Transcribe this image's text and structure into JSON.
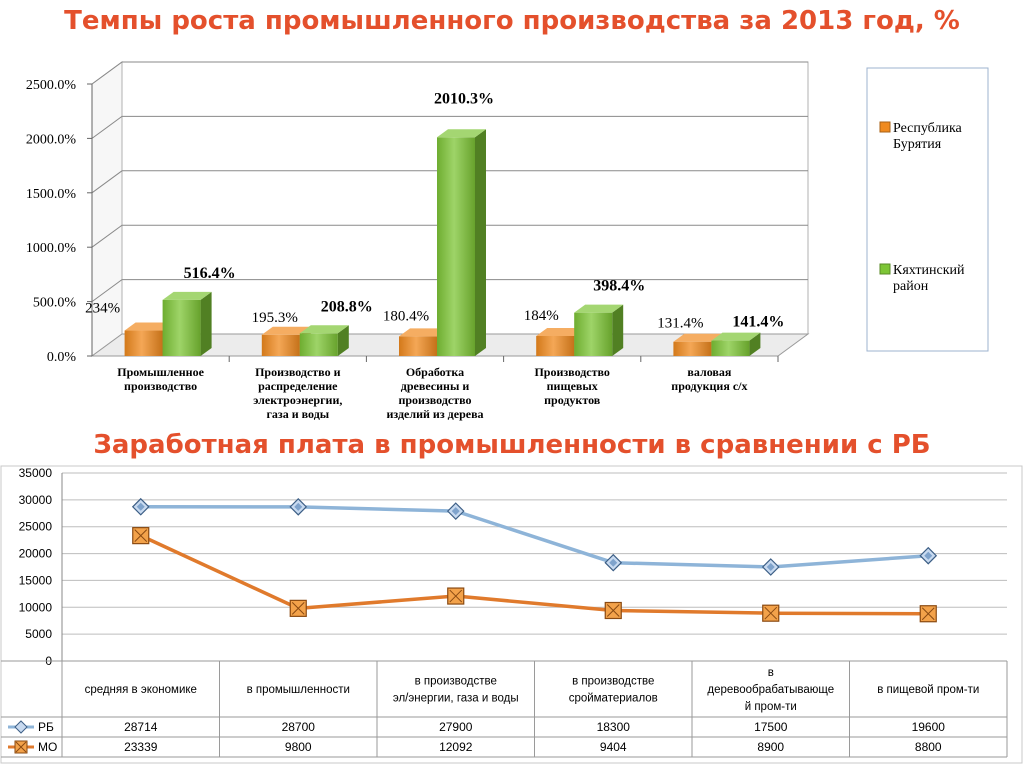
{
  "page": {
    "title1": "Темпы роста промышленного производства за 2013 год, %",
    "title2": "Заработная плата в промышленности в сравнении с РБ"
  },
  "chart_data": [
    {
      "type": "bar",
      "title": "Темпы роста промышленного производства за 2013 год, %",
      "categories": [
        "Промышленное производство",
        "Производство и распределение электроэнергии, газа и воды",
        "Обработка древесины и производство изделий из дерева",
        "Производство пищевых продуктов",
        "валовая продукция с/х"
      ],
      "series": [
        {
          "name": "Республика Бурятия",
          "values": [
            234,
            195.3,
            180.4,
            184,
            131.4
          ],
          "labels": [
            "234%",
            "195.3%",
            "180.4%",
            "184%",
            "131.4%"
          ],
          "color": "#f08a1e"
        },
        {
          "name": "Кяхтинский район",
          "values": [
            516.4,
            208.8,
            2010.3,
            398.4,
            141.4
          ],
          "labels": [
            "516.4%",
            "208.8%",
            "2010.3%",
            "398.4%",
            "141.4%"
          ],
          "color": "#7dc536"
        }
      ],
      "yticks": [
        "0.0%",
        "500.0%",
        "1000.0%",
        "1500.0%",
        "2000.0%",
        "2500.0%"
      ],
      "ylim": [
        0,
        2500
      ],
      "category_labels": [
        [
          "Промышленное",
          "производство"
        ],
        [
          "Производство и",
          "распределение",
          "электроэнергии,",
          "газа и воды"
        ],
        [
          "Обработка",
          "древесины и",
          "производство",
          "изделий из дерева"
        ],
        [
          "Производство",
          "пищевых",
          "продуктов"
        ],
        [
          "валовая",
          "продукция с/х"
        ]
      ],
      "legend": {
        "position": "right",
        "items": [
          {
            "lines": [
              "Республика",
              "Бурятия"
            ]
          },
          {
            "lines": [
              "Кяхтинский",
              "район"
            ]
          }
        ]
      },
      "grid": true,
      "style": "3d"
    },
    {
      "type": "line",
      "title": "Заработная плата в промышленности в сравнении с РБ",
      "categories": [
        "средняя в экономике",
        "в промышленности",
        "в производстве эл/энергии, газа и воды",
        "в производстве сройматериалов",
        "в деревообрабатывающей пром-ти",
        "в пищевой пром-ти"
      ],
      "category_labels": [
        [
          "средняя в экономике"
        ],
        [
          "в промышленности"
        ],
        [
          "в производстве",
          "эл/энергии, газа и воды"
        ],
        [
          "в производстве",
          "сройматериалов"
        ],
        [
          "в",
          "деревообрабатывающе",
          "й пром-ти"
        ],
        [
          "в пищевой пром-ти"
        ]
      ],
      "series": [
        {
          "name": "РБ",
          "values": [
            28714,
            28700,
            27900,
            18300,
            17500,
            19600
          ],
          "color": "#8eb4d8",
          "marker": "diamond"
        },
        {
          "name": "МО",
          "values": [
            23339,
            9800,
            12092,
            9404,
            8900,
            8800
          ],
          "color": "#e07a2c",
          "marker": "square-x"
        }
      ],
      "yticks": [
        "0",
        "5000",
        "10000",
        "15000",
        "20000",
        "25000",
        "30000",
        "35000"
      ],
      "ylim": [
        0,
        35000
      ],
      "data_table": true,
      "grid": true
    }
  ]
}
